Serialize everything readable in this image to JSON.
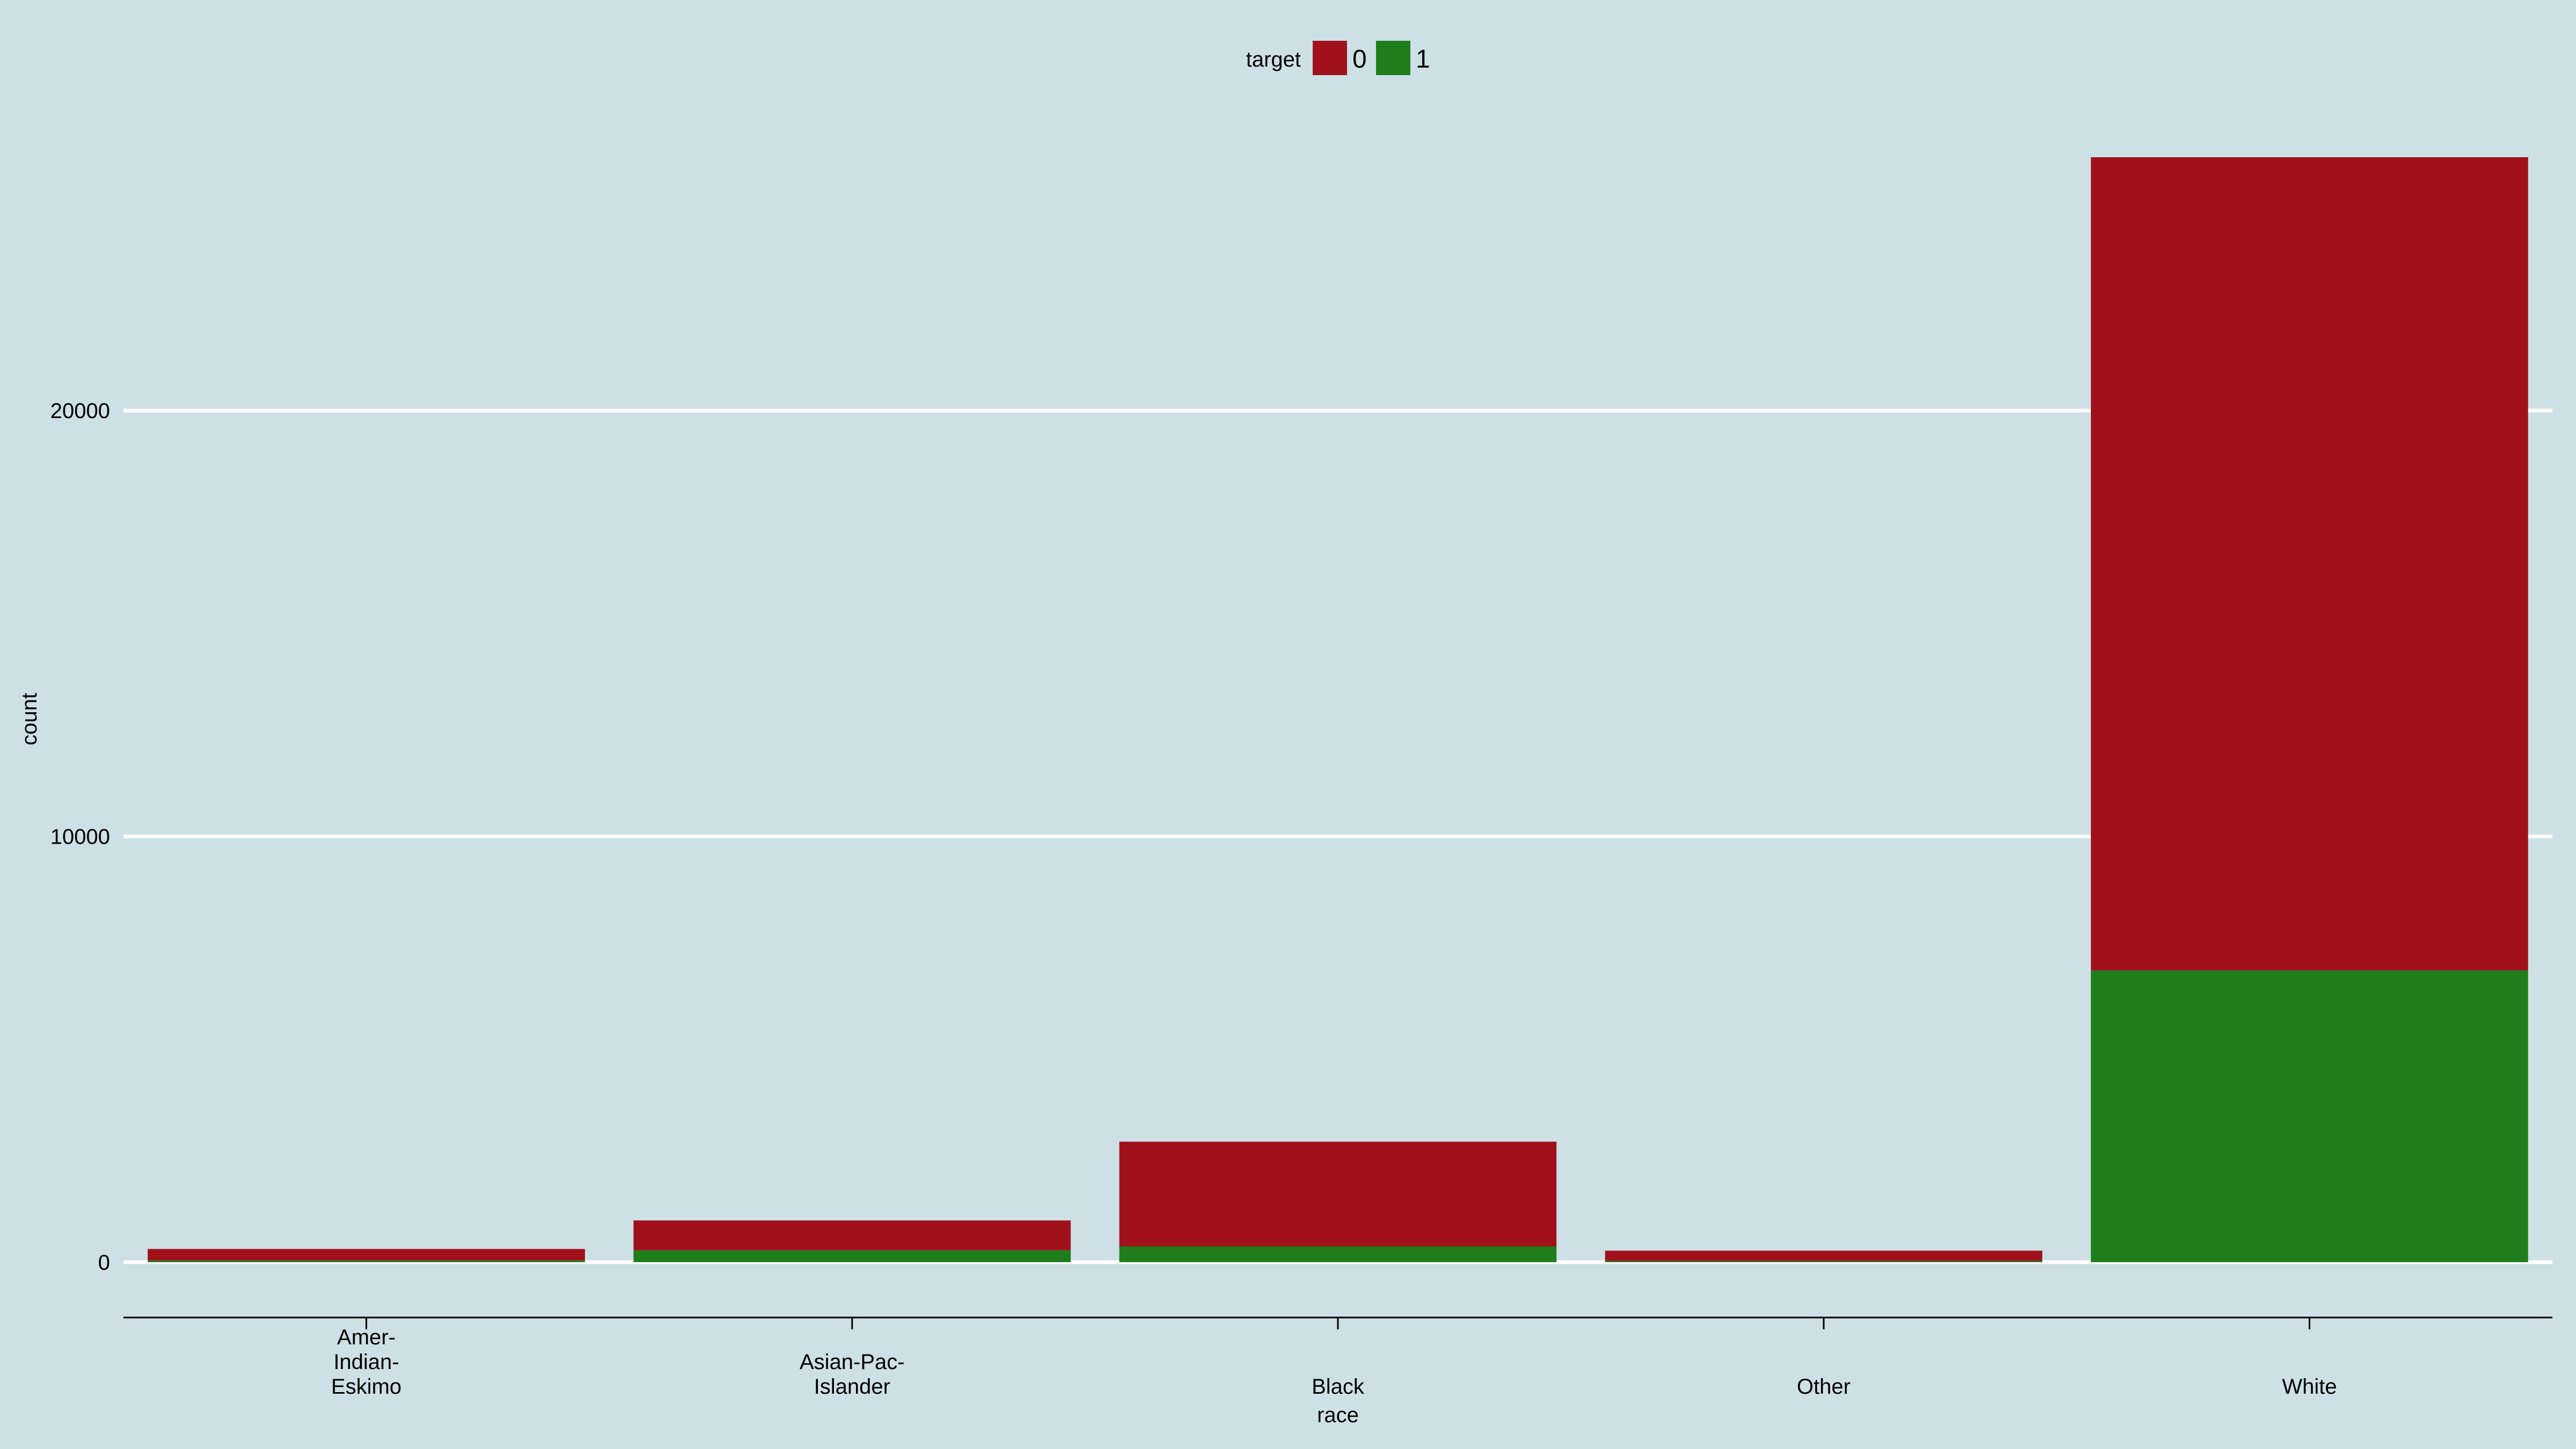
{
  "chart_data": {
    "type": "bar",
    "stacked": true,
    "categories": [
      "Amer-Indian-Eskimo",
      "Asian-Pac-Islander",
      "Black",
      "Other",
      "White"
    ],
    "category_label_lines": [
      [
        "Amer-",
        "Indian-",
        "Eskimo"
      ],
      [
        "Asian-Pac-",
        "Islander"
      ],
      [
        "Black"
      ],
      [
        "Other"
      ],
      [
        "White"
      ]
    ],
    "series": [
      {
        "name": "1",
        "values": [
          40,
          280,
          370,
          30,
          6850
        ]
      },
      {
        "name": "0",
        "values": [
          270,
          700,
          2460,
          240,
          19100
        ]
      }
    ],
    "xlabel": "race",
    "ylabel": "count",
    "ylim": [
      -1300,
      27500
    ],
    "yticks": [
      0,
      10000,
      20000
    ],
    "legend": {
      "title": "target",
      "entries": [
        "0",
        "1"
      ],
      "position": "top"
    },
    "grid": {
      "horizontal": true,
      "vertical": false
    },
    "colors": {
      "0": "#a0111b",
      "1": "#1f7d1c",
      "background": "#cde0e6",
      "grid": "#ffffff",
      "axis": "#000000"
    }
  }
}
